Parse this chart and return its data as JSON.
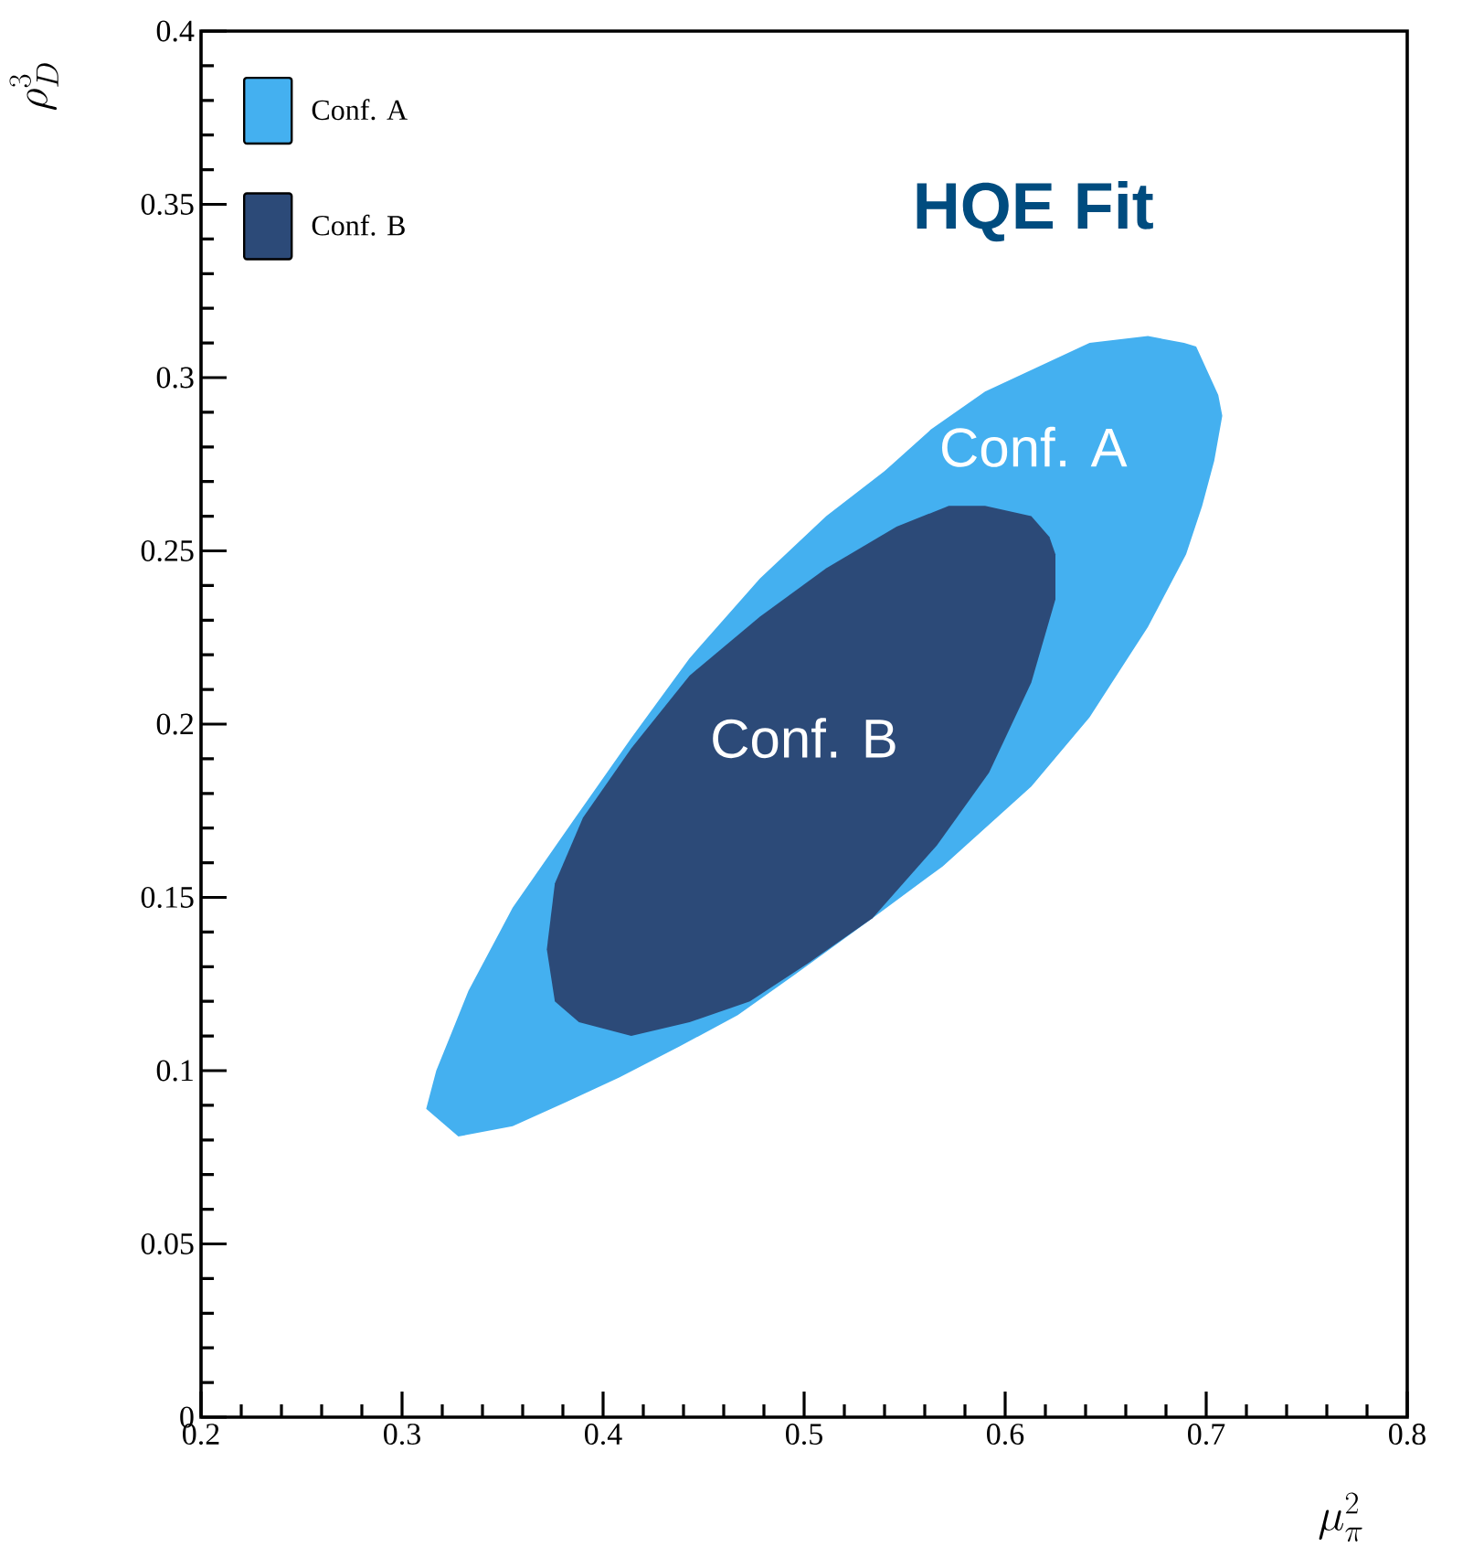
{
  "chart_data": {
    "type": "area",
    "title": "HQE Fit",
    "xlabel": "\\mu_{\\pi}^{2}",
    "ylabel": "\\rho_{D}^{3}",
    "xlim": [
      0.2,
      0.8
    ],
    "ylim": [
      0,
      0.4
    ],
    "xticks": [
      0.2,
      0.3,
      0.4,
      0.5,
      0.6,
      0.7,
      0.8
    ],
    "yticks": [
      0,
      0.05,
      0.1,
      0.15,
      0.2,
      0.25,
      0.3,
      0.35,
      0.4
    ],
    "legend": "top left",
    "grid": false,
    "series": [
      {
        "name": "Conf. A",
        "color": "#44b0f0",
        "x": [
          0.312,
          0.328,
          0.355,
          0.382,
          0.408,
          0.438,
          0.467,
          0.496,
          0.534,
          0.569,
          0.613,
          0.642,
          0.671,
          0.69,
          0.698,
          0.704,
          0.708,
          0.706,
          0.695,
          0.689,
          0.671,
          0.642,
          0.616,
          0.59,
          0.563,
          0.54,
          0.511,
          0.478,
          0.443,
          0.414,
          0.385,
          0.355,
          0.333,
          0.324,
          0.317
        ],
        "values": [
          0.089,
          0.081,
          0.084,
          0.091,
          0.098,
          0.107,
          0.116,
          0.128,
          0.144,
          0.159,
          0.182,
          0.202,
          0.228,
          0.249,
          0.263,
          0.276,
          0.289,
          0.295,
          0.309,
          0.31,
          0.312,
          0.31,
          0.303,
          0.296,
          0.285,
          0.273,
          0.26,
          0.242,
          0.219,
          0.196,
          0.172,
          0.147,
          0.123,
          0.11,
          0.1
        ]
      },
      {
        "name": "Conf. B",
        "color": "#2c4a78",
        "x": [
          0.388,
          0.414,
          0.443,
          0.473,
          0.502,
          0.534,
          0.566,
          0.592,
          0.613,
          0.625,
          0.625,
          0.622,
          0.613,
          0.59,
          0.572,
          0.546,
          0.511,
          0.478,
          0.443,
          0.414,
          0.39,
          0.376,
          0.372,
          0.376
        ],
        "values": [
          0.114,
          0.11,
          0.114,
          0.12,
          0.131,
          0.144,
          0.165,
          0.186,
          0.212,
          0.236,
          0.249,
          0.254,
          0.26,
          0.263,
          0.263,
          0.257,
          0.245,
          0.231,
          0.214,
          0.193,
          0.173,
          0.154,
          0.135,
          0.12
        ]
      }
    ],
    "annotations": [
      "Conf. A",
      "Conf. B"
    ]
  }
}
